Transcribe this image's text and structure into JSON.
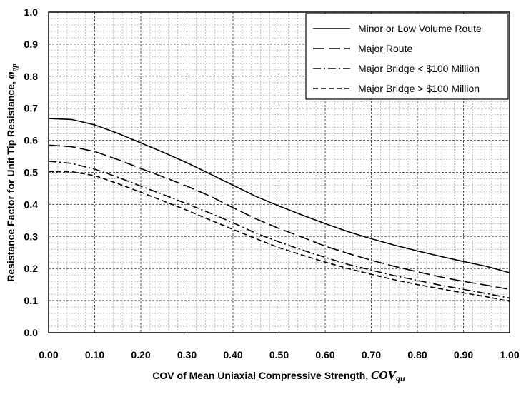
{
  "chart_data": {
    "type": "line",
    "xlabel": "COV of Mean Uniaxial Compressive Strength, ",
    "xlabel_symbol": "COV",
    "xlabel_subscript": "qu",
    "ylabel": "Resistance Factor for Unit Tip Resistance, ",
    "ylabel_symbol": "φ",
    "ylabel_subscript": "qp",
    "xlim": [
      0,
      1.0
    ],
    "ylim": [
      0,
      1.0
    ],
    "x_ticks": [
      "0.00",
      "0.10",
      "0.20",
      "0.30",
      "0.40",
      "0.50",
      "0.60",
      "0.70",
      "0.80",
      "0.90",
      "1.00"
    ],
    "y_ticks": [
      "0.0",
      "0.1",
      "0.2",
      "0.3",
      "0.4",
      "0.5",
      "0.6",
      "0.7",
      "0.8",
      "0.9",
      "1.0"
    ],
    "grid": "major and minor, dashed",
    "legend_position": "top-right",
    "x": [
      0,
      0.05,
      0.1,
      0.15,
      0.2,
      0.25,
      0.3,
      0.35,
      0.4,
      0.45,
      0.5,
      0.55,
      0.6,
      0.65,
      0.7,
      0.75,
      0.8,
      0.85,
      0.9,
      0.95,
      1.0
    ],
    "series": [
      {
        "name": "Minor or Low Volume Route",
        "dash": "solid",
        "values": [
          0.668,
          0.665,
          0.648,
          0.622,
          0.592,
          0.562,
          0.53,
          0.495,
          0.46,
          0.425,
          0.395,
          0.367,
          0.34,
          0.315,
          0.293,
          0.273,
          0.255,
          0.238,
          0.222,
          0.207,
          0.187
        ]
      },
      {
        "name": "Major Route",
        "dash": "long-dash",
        "values": [
          0.585,
          0.58,
          0.565,
          0.54,
          0.512,
          0.485,
          0.457,
          0.426,
          0.39,
          0.355,
          0.325,
          0.298,
          0.27,
          0.247,
          0.226,
          0.207,
          0.19,
          0.174,
          0.16,
          0.148,
          0.135
        ]
      },
      {
        "name": "Major Bridge < $100 Million",
        "dash": "dash-dot",
        "values": [
          0.535,
          0.528,
          0.51,
          0.485,
          0.457,
          0.43,
          0.402,
          0.373,
          0.343,
          0.31,
          0.283,
          0.258,
          0.235,
          0.213,
          0.195,
          0.178,
          0.163,
          0.148,
          0.135,
          0.122,
          0.108
        ]
      },
      {
        "name": "Major Bridge > $100 Million",
        "dash": "short-dash",
        "values": [
          0.503,
          0.502,
          0.49,
          0.465,
          0.438,
          0.41,
          0.382,
          0.352,
          0.322,
          0.293,
          0.265,
          0.242,
          0.22,
          0.2,
          0.182,
          0.165,
          0.15,
          0.137,
          0.124,
          0.112,
          0.098
        ]
      }
    ]
  }
}
